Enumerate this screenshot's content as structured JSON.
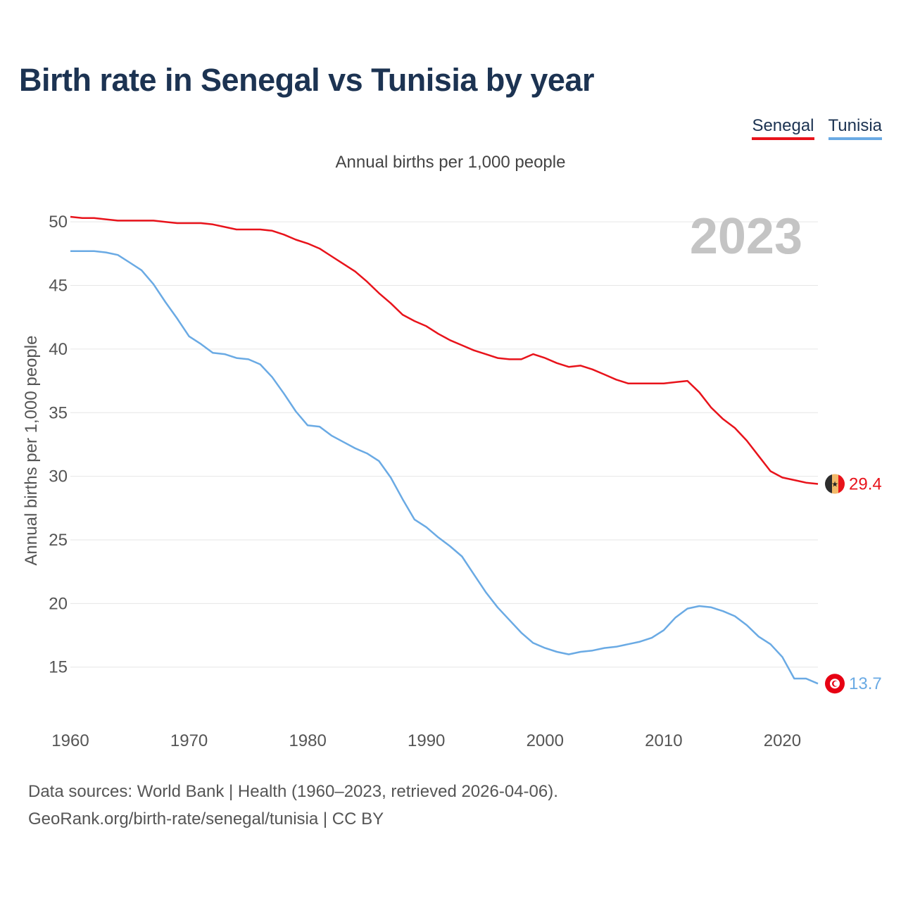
{
  "title": "Birth rate in Senegal vs Tunisia by year",
  "subtitle": "Annual births per 1,000 people",
  "year_watermark": "2023",
  "sources": {
    "line1": "Data sources: World Bank | Health (1960–2023, retrieved 2026-04-06).",
    "line2": "GeoRank.org/birth-rate/senegal/tunisia | CC BY"
  },
  "colors": {
    "senegal": "#e8131b",
    "tunisia": "#6aaae4",
    "grid": "#e6e6e6",
    "watermark": "#c4c4c4"
  },
  "chart_data": {
    "type": "line",
    "title": "Birth rate in Senegal vs Tunisia by year",
    "ylabel": "Annual births per 1,000 people",
    "xlabel": "",
    "xlim": [
      1960,
      2023
    ],
    "ylim": [
      11,
      52.5
    ],
    "x_ticks": [
      1960,
      1970,
      1980,
      1990,
      2000,
      2010,
      2020
    ],
    "y_ticks": [
      15,
      20,
      25,
      30,
      35,
      40,
      45,
      50
    ],
    "x": [
      1960,
      1961,
      1962,
      1963,
      1964,
      1965,
      1966,
      1967,
      1968,
      1969,
      1970,
      1971,
      1972,
      1973,
      1974,
      1975,
      1976,
      1977,
      1978,
      1979,
      1980,
      1981,
      1982,
      1983,
      1984,
      1985,
      1986,
      1987,
      1988,
      1989,
      1990,
      1991,
      1992,
      1993,
      1994,
      1995,
      1996,
      1997,
      1998,
      1999,
      2000,
      2001,
      2002,
      2003,
      2004,
      2005,
      2006,
      2007,
      2008,
      2009,
      2010,
      2011,
      2012,
      2013,
      2014,
      2015,
      2016,
      2017,
      2018,
      2019,
      2020,
      2021,
      2022,
      2023
    ],
    "series": [
      {
        "name": "Senegal",
        "end_label": "29.4",
        "values": [
          50.4,
          50.3,
          50.3,
          50.2,
          50.1,
          50.1,
          50.1,
          50.1,
          50.0,
          49.9,
          49.9,
          49.9,
          49.8,
          49.6,
          49.4,
          49.4,
          49.4,
          49.3,
          49.0,
          48.6,
          48.3,
          47.9,
          47.3,
          46.7,
          46.1,
          45.3,
          44.4,
          43.6,
          42.7,
          42.2,
          41.8,
          41.2,
          40.7,
          40.3,
          39.9,
          39.6,
          39.3,
          39.2,
          39.2,
          39.6,
          39.3,
          38.9,
          38.6,
          38.7,
          38.4,
          38.0,
          37.6,
          37.3,
          37.3,
          37.3,
          37.3,
          37.4,
          37.5,
          36.6,
          35.4,
          34.5,
          33.8,
          32.8,
          31.6,
          30.4,
          29.9,
          29.7,
          29.5,
          29.4
        ]
      },
      {
        "name": "Tunisia",
        "end_label": "13.7",
        "values": [
          47.7,
          47.7,
          47.7,
          47.6,
          47.4,
          46.8,
          46.2,
          45.1,
          43.7,
          42.4,
          41.0,
          40.4,
          39.7,
          39.6,
          39.3,
          39.2,
          38.8,
          37.8,
          36.5,
          35.1,
          34.0,
          33.9,
          33.2,
          32.7,
          32.2,
          31.8,
          31.2,
          29.9,
          28.2,
          26.6,
          26.0,
          25.2,
          24.5,
          23.7,
          22.3,
          20.9,
          19.7,
          18.7,
          17.7,
          16.9,
          16.5,
          16.2,
          16.0,
          16.2,
          16.3,
          16.5,
          16.6,
          16.8,
          17.0,
          17.3,
          17.9,
          18.9,
          19.6,
          19.8,
          19.7,
          19.4,
          19.0,
          18.3,
          17.4,
          16.8,
          15.8,
          14.1,
          14.1,
          13.7
        ]
      }
    ]
  }
}
